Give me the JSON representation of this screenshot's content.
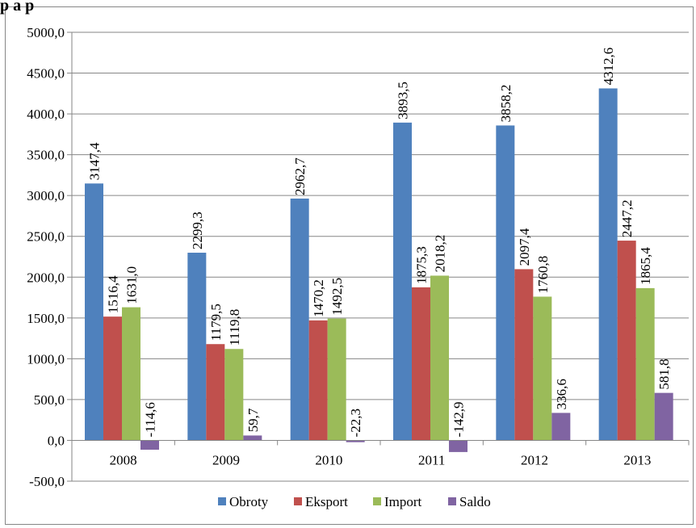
{
  "header_fragment": "p   a   p",
  "colors": {
    "Obroty": "#4F81BD",
    "Eksport": "#C0504D",
    "Import": "#9BBB59",
    "Saldo": "#8064A2",
    "grid": "#868686",
    "axis": "#868686"
  },
  "chart_data": {
    "type": "bar",
    "categories": [
      "2008",
      "2009",
      "2010",
      "2011",
      "2012",
      "2013"
    ],
    "series": [
      {
        "name": "Obroty",
        "values": [
          3147.4,
          2299.3,
          2962.7,
          3893.5,
          3858.2,
          4312.6
        ],
        "labels": [
          "3147,4",
          "2299,3",
          "2962,7",
          "3893,5",
          "3858,2",
          "4312,6"
        ]
      },
      {
        "name": "Eksport",
        "values": [
          1516.4,
          1179.5,
          1470.2,
          1875.3,
          2097.4,
          2447.2
        ],
        "labels": [
          "1516,4",
          "1179,5",
          "1470,2",
          "1875,3",
          "2097,4",
          "2447,2"
        ]
      },
      {
        "name": "Import",
        "values": [
          1631.0,
          1119.8,
          1492.5,
          2018.2,
          1760.8,
          1865.4
        ],
        "labels": [
          "1631,0",
          "1119,8",
          "1492,5",
          "2018,2",
          "1760,8",
          "1865,4"
        ]
      },
      {
        "name": "Saldo",
        "values": [
          -114.6,
          59.7,
          -22.3,
          -142.9,
          336.6,
          581.8
        ],
        "labels": [
          "-114,6",
          "59,7",
          "-22,3",
          "-142,9",
          "336,6",
          "581,8"
        ]
      }
    ],
    "y_ticks": [
      "-500,0",
      "0,0",
      "500,0",
      "1000,0",
      "1500,0",
      "2000,0",
      "2500,0",
      "3000,0",
      "3500,0",
      "4000,0",
      "4500,0",
      "5000,0"
    ],
    "ylim": [
      -500,
      5000
    ],
    "grid": true,
    "legend_position": "bottom"
  }
}
